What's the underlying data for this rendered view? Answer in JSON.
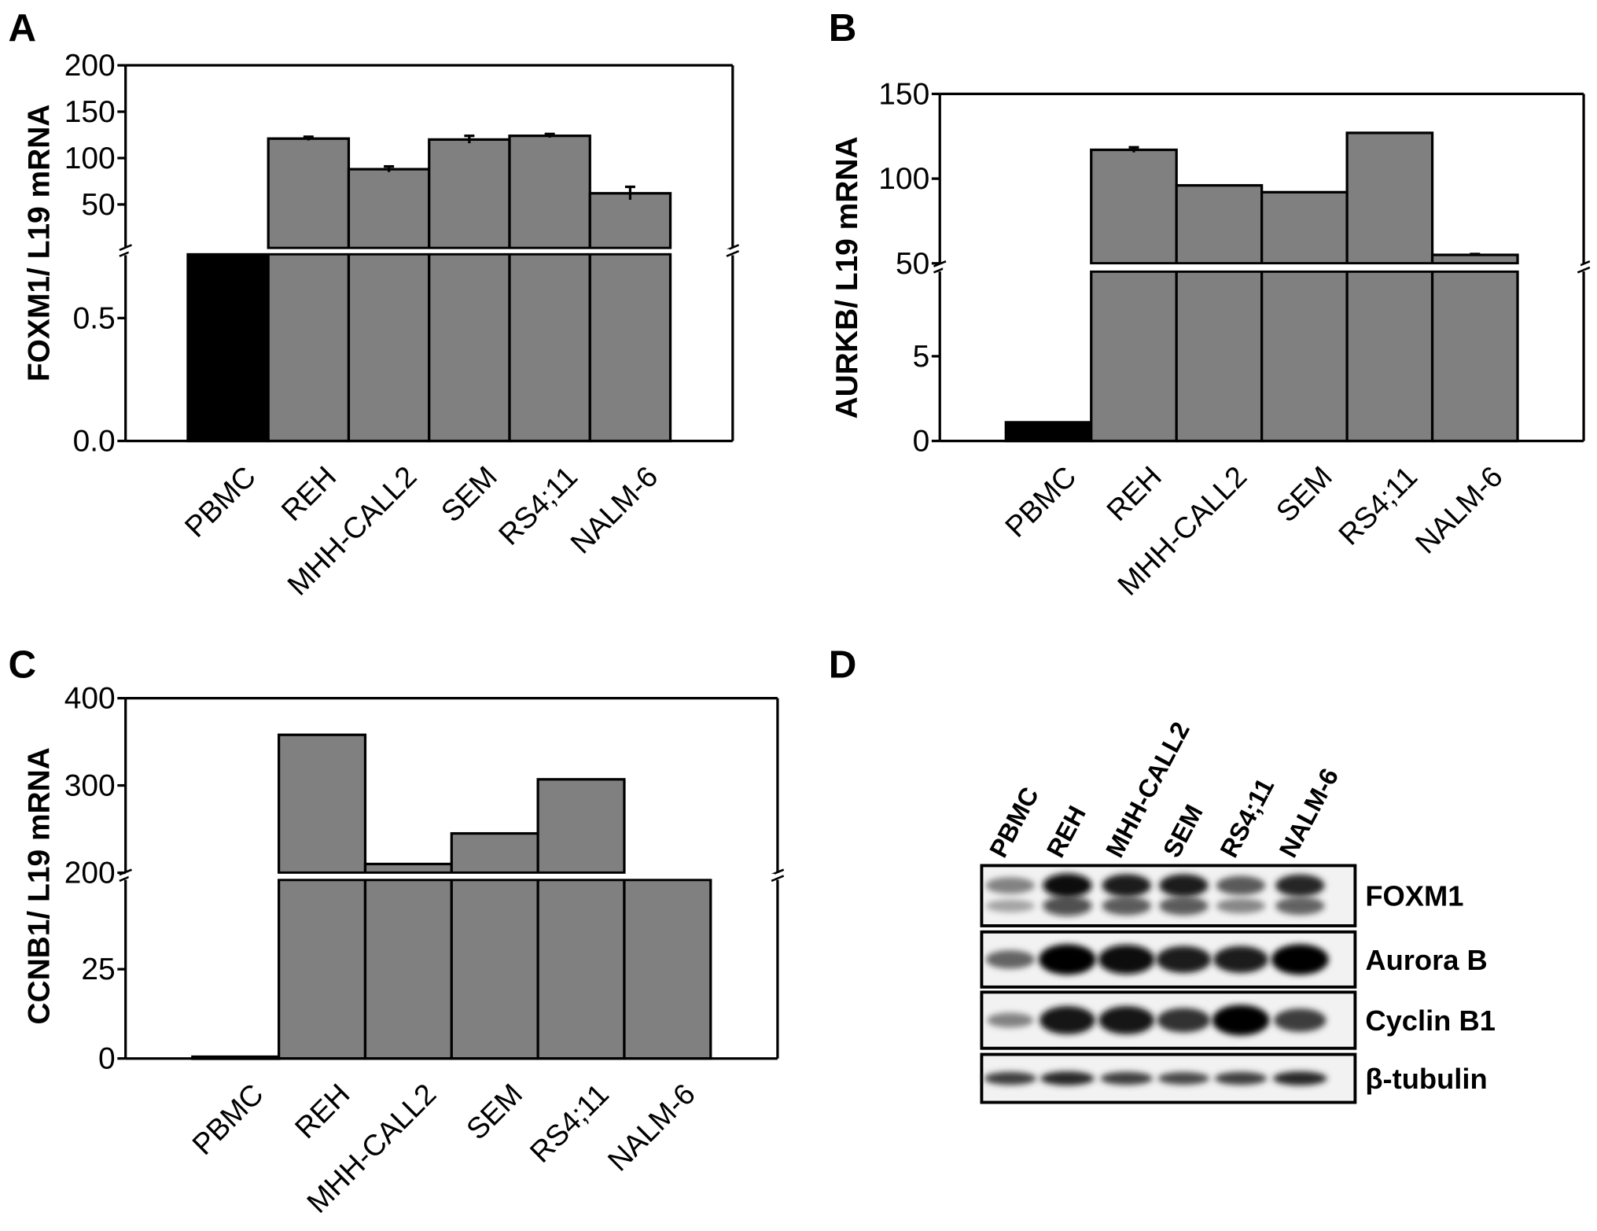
{
  "panels": {
    "a": "A",
    "b": "B",
    "c": "C",
    "d": "D"
  },
  "chart_data": [
    {
      "id": "A",
      "type": "bar",
      "ylabel": "FOXM1/ L19 mRNA",
      "categories": [
        "PBMC",
        "REH",
        "MHH-CALL2",
        "SEM",
        "RS4;11",
        "NALM-6"
      ],
      "values": [
        0.76,
        121,
        88,
        120,
        124,
        62
      ],
      "errors": [
        0,
        2,
        3,
        4,
        2,
        7
      ],
      "broken_axis": true,
      "lower_range": [
        0,
        0.76
      ],
      "upper_range": [
        3,
        200
      ],
      "lower_ticks": [
        "0.0",
        "0.5"
      ],
      "upper_ticks": [
        "50",
        "100",
        "150",
        "200"
      ],
      "colors": {
        "PBMC": "#000000",
        "cell_lines": "#808080"
      }
    },
    {
      "id": "B",
      "type": "bar",
      "ylabel": "AURKB/ L19 mRNA",
      "categories": [
        "PBMC",
        "REH",
        "MHH-CALL2",
        "SEM",
        "RS4;11",
        "NALM-6"
      ],
      "values": [
        1.1,
        117,
        96,
        92,
        127,
        55
      ],
      "errors": [
        0,
        1.5,
        0,
        0,
        0,
        0.5
      ],
      "broken_axis": true,
      "lower_range": [
        0,
        10
      ],
      "upper_range": [
        50,
        150
      ],
      "lower_ticks": [
        "0",
        "5"
      ],
      "upper_ticks": [
        "50",
        "100",
        "150"
      ],
      "colors": {
        "PBMC": "#000000",
        "cell_lines": "#808080"
      }
    },
    {
      "id": "C",
      "type": "bar",
      "ylabel": "CCNB1/ L19 mRNA",
      "categories": [
        "PBMC",
        "REH",
        "MHH-CALL2",
        "SEM",
        "RS4;11",
        "NALM-6"
      ],
      "values": [
        0.5,
        358,
        210,
        245,
        307,
        50
      ],
      "errors": [
        0,
        0,
        0,
        0,
        0,
        0
      ],
      "broken_axis": true,
      "lower_range": [
        0,
        50
      ],
      "upper_range": [
        200,
        400
      ],
      "lower_ticks": [
        "0",
        "25"
      ],
      "upper_ticks": [
        "200",
        "300",
        "400"
      ],
      "colors": {
        "PBMC": "#000000",
        "cell_lines": "#808080"
      }
    }
  ],
  "western_blot": {
    "lanes": [
      "PBMC",
      "REH",
      "MHH-CALL2",
      "SEM",
      "RS4;11",
      "NALM-6"
    ],
    "rows": [
      {
        "label": "FOXM1",
        "intensity": [
          0.35,
          0.95,
          0.85,
          0.85,
          0.55,
          0.8
        ]
      },
      {
        "label": "Aurora B",
        "intensity": [
          0.5,
          1.0,
          0.95,
          0.85,
          0.85,
          1.0
        ]
      },
      {
        "label": "Cyclin B1",
        "intensity": [
          0.35,
          0.9,
          0.9,
          0.75,
          1.0,
          0.7
        ]
      },
      {
        "label": "β-tubulin",
        "intensity": [
          0.7,
          0.8,
          0.7,
          0.65,
          0.7,
          0.8
        ]
      }
    ]
  }
}
